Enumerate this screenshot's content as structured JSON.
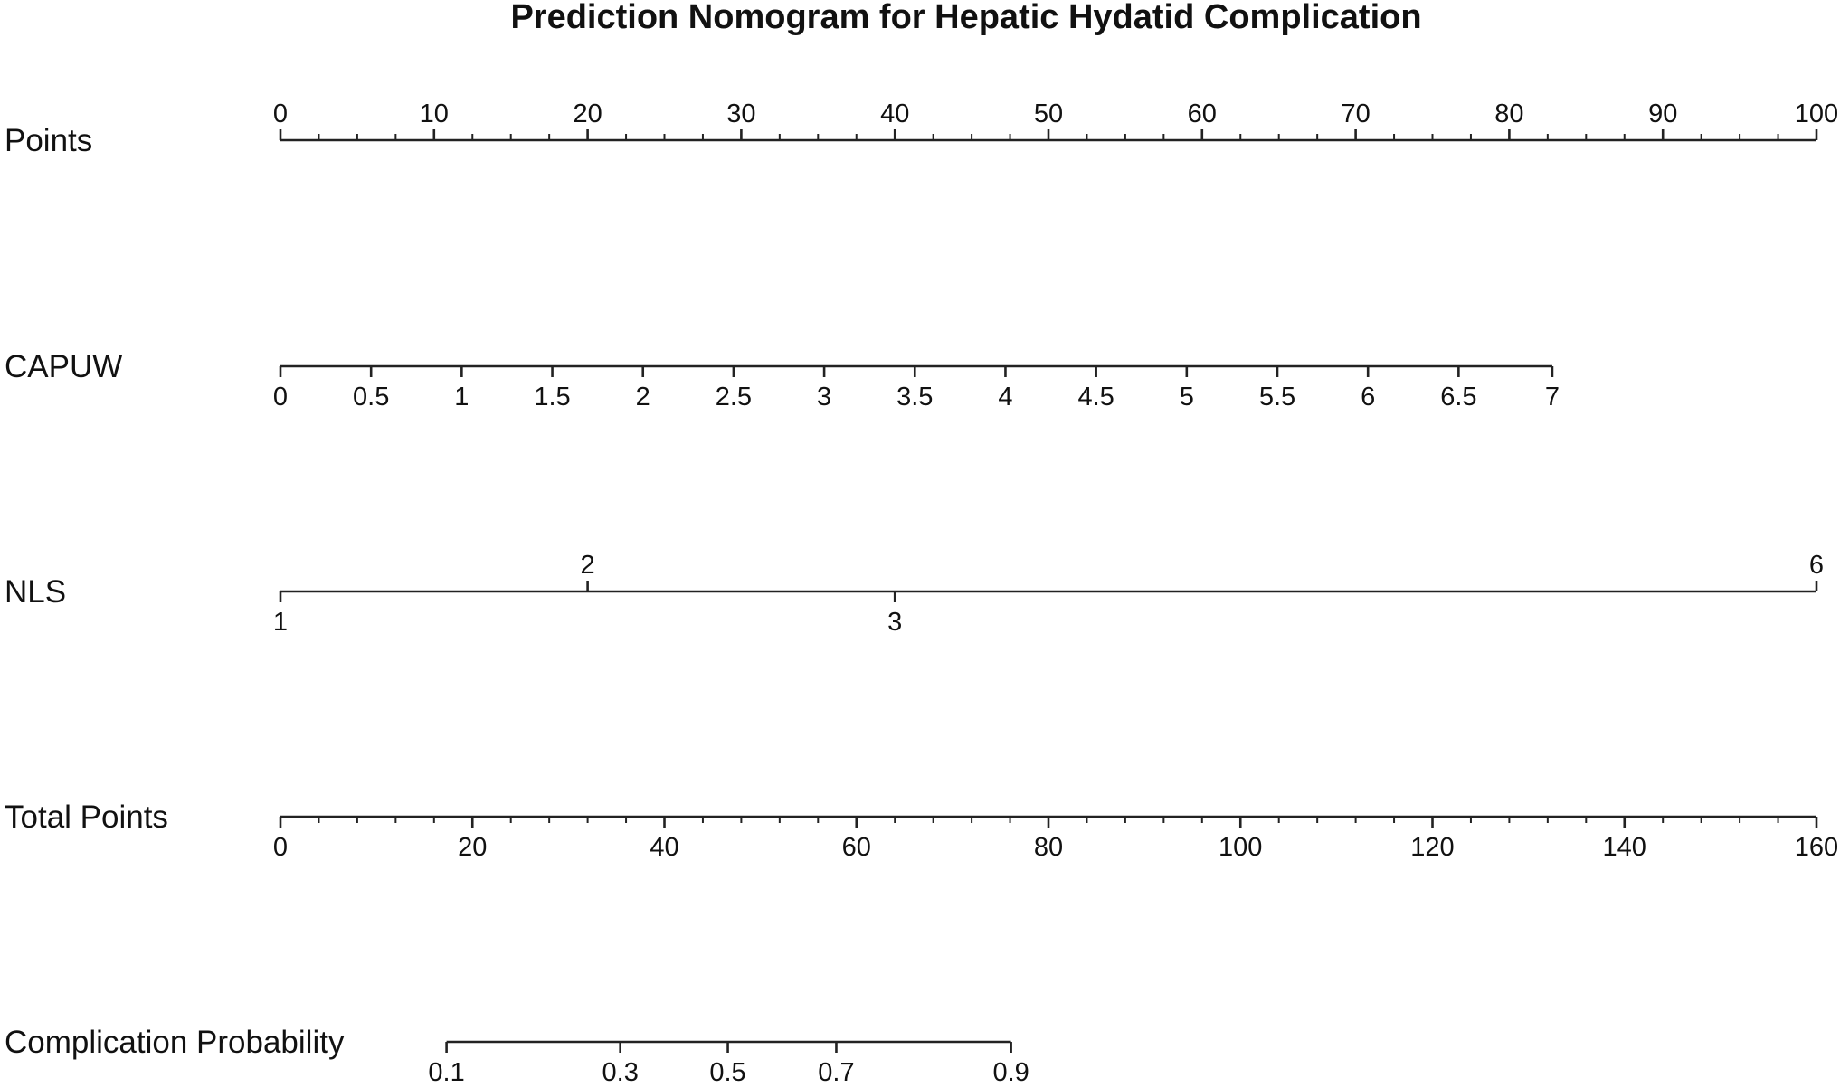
{
  "chart_data": {
    "type": "nomogram",
    "title": "Prediction Nomogram for Hepatic Hydatid Complication",
    "rows": [
      {
        "label": "Points",
        "tick_side": "above",
        "points_scale": true,
        "ticks": [
          {
            "label": "0",
            "points": 0
          },
          {
            "label": "10",
            "points": 10
          },
          {
            "label": "20",
            "points": 20
          },
          {
            "label": "30",
            "points": 30
          },
          {
            "label": "40",
            "points": 40
          },
          {
            "label": "50",
            "points": 50
          },
          {
            "label": "60",
            "points": 60
          },
          {
            "label": "70",
            "points": 70
          },
          {
            "label": "80",
            "points": 80
          },
          {
            "label": "90",
            "points": 90
          },
          {
            "label": "100",
            "points": 100
          }
        ],
        "minor_step": 2.5
      },
      {
        "label": "CAPUW",
        "tick_side": "below",
        "ticks": [
          {
            "label": "0",
            "points": 0
          },
          {
            "label": "0.5",
            "points": 5.9
          },
          {
            "label": "1",
            "points": 11.8
          },
          {
            "label": "1.5",
            "points": 17.7
          },
          {
            "label": "2",
            "points": 23.6
          },
          {
            "label": "2.5",
            "points": 29.5
          },
          {
            "label": "3",
            "points": 35.4
          },
          {
            "label": "3.5",
            "points": 41.3
          },
          {
            "label": "4",
            "points": 47.2
          },
          {
            "label": "4.5",
            "points": 53.1
          },
          {
            "label": "5",
            "points": 59.0
          },
          {
            "label": "5.5",
            "points": 64.9
          },
          {
            "label": "6",
            "points": 70.8
          },
          {
            "label": "6.5",
            "points": 76.7
          },
          {
            "label": "7",
            "points": 82.8
          }
        ]
      },
      {
        "label": "NLS",
        "tick_side": "mixed",
        "ticks": [
          {
            "label": "1",
            "points": 0,
            "side": "below"
          },
          {
            "label": "2",
            "points": 20,
            "side": "above"
          },
          {
            "label": "3",
            "points": 40,
            "side": "below"
          },
          {
            "label": "6",
            "points": 100,
            "side": "above"
          }
        ]
      },
      {
        "label": "Total Points",
        "tick_side": "below",
        "total_scale": true,
        "ticks": [
          {
            "label": "0",
            "total": 0
          },
          {
            "label": "20",
            "total": 20
          },
          {
            "label": "40",
            "total": 40
          },
          {
            "label": "60",
            "total": 60
          },
          {
            "label": "80",
            "total": 80
          },
          {
            "label": "100",
            "total": 100
          },
          {
            "label": "120",
            "total": 120
          },
          {
            "label": "140",
            "total": 140
          },
          {
            "label": "160",
            "total": 160
          }
        ],
        "minor_step": 4
      },
      {
        "label": "Complication Probability",
        "tick_side": "below",
        "ticks": [
          {
            "label": "0.1",
            "total": 17.3
          },
          {
            "label": "0.3",
            "total": 35.4
          },
          {
            "label": "0.5",
            "total": 46.6
          },
          {
            "label": "0.7",
            "total": 57.9
          },
          {
            "label": "0.9",
            "total": 76.1
          }
        ]
      }
    ],
    "points_range": [
      0,
      100
    ],
    "total_points_range": [
      0,
      160
    ],
    "grid": false
  }
}
